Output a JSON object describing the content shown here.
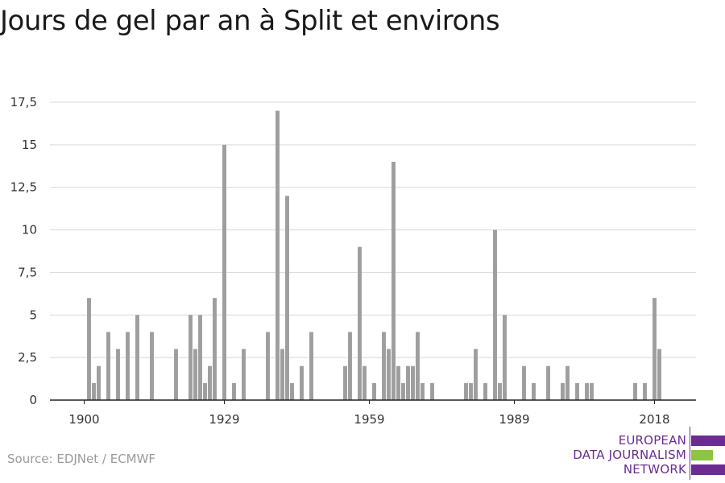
{
  "title": "Jours de gel par an à Split et environs",
  "source": "Source: EDJNet / ECMWF",
  "logo": {
    "lines": [
      "EUROPEAN",
      "DATA JOURNALISM",
      "NETWORK"
    ],
    "colors": {
      "purple": "#6a2c91",
      "green": "#8cc63f"
    }
  },
  "colors": {
    "bar": "#9e9e9e",
    "grid": "#d9d9d9",
    "axis": "#222222"
  },
  "chart_data": {
    "type": "bar",
    "title": "Jours de gel par an à Split et environs",
    "xlabel": "",
    "ylabel": "",
    "xlim": [
      1900,
      2019
    ],
    "ylim": [
      0,
      17.5
    ],
    "yticks": [
      0,
      2.5,
      5,
      7.5,
      10,
      12.5,
      15,
      17.5
    ],
    "ytick_labels": [
      "0",
      "2,5",
      "5",
      "7,5",
      "10",
      "12,5",
      "15",
      "17,5"
    ],
    "xticks": [
      1900,
      1929,
      1959,
      1989,
      2018
    ],
    "xtick_labels": [
      "1900",
      "1929",
      "1959",
      "1989",
      "2018"
    ],
    "grid": true,
    "x": [
      1900,
      1901,
      1902,
      1903,
      1904,
      1905,
      1906,
      1907,
      1908,
      1909,
      1910,
      1911,
      1912,
      1913,
      1914,
      1915,
      1916,
      1917,
      1918,
      1919,
      1920,
      1921,
      1922,
      1923,
      1924,
      1925,
      1926,
      1927,
      1928,
      1929,
      1930,
      1931,
      1932,
      1933,
      1934,
      1935,
      1936,
      1937,
      1938,
      1939,
      1940,
      1941,
      1942,
      1943,
      1944,
      1945,
      1946,
      1947,
      1948,
      1949,
      1950,
      1951,
      1952,
      1953,
      1954,
      1955,
      1956,
      1957,
      1958,
      1959,
      1960,
      1961,
      1962,
      1963,
      1964,
      1965,
      1966,
      1967,
      1968,
      1969,
      1970,
      1971,
      1972,
      1973,
      1974,
      1975,
      1976,
      1977,
      1978,
      1979,
      1980,
      1981,
      1982,
      1983,
      1984,
      1985,
      1986,
      1987,
      1988,
      1989,
      1990,
      1991,
      1992,
      1993,
      1994,
      1995,
      1996,
      1997,
      1998,
      1999,
      2000,
      2001,
      2002,
      2003,
      2004,
      2005,
      2006,
      2007,
      2008,
      2009,
      2010,
      2011,
      2012,
      2013,
      2014,
      2015,
      2016,
      2017,
      2018,
      2019
    ],
    "values": [
      0,
      6,
      1,
      2,
      0,
      4,
      0,
      3,
      0,
      4,
      0,
      5,
      0,
      0,
      4,
      0,
      0,
      0,
      0,
      3,
      0,
      0,
      5,
      3,
      5,
      1,
      2,
      6,
      0,
      15,
      0,
      1,
      0,
      3,
      0,
      0,
      0,
      0,
      4,
      0,
      17,
      3,
      12,
      1,
      0,
      2,
      0,
      4,
      0,
      0,
      0,
      0,
      0,
      0,
      2,
      4,
      0,
      9,
      2,
      0,
      1,
      0,
      4,
      3,
      14,
      2,
      1,
      2,
      2,
      4,
      1,
      0,
      1,
      0,
      0,
      0,
      0,
      0,
      0,
      1,
      1,
      3,
      0,
      1,
      0,
      10,
      1,
      5,
      0,
      0,
      0,
      2,
      0,
      1,
      0,
      0,
      2,
      0,
      0,
      1,
      2,
      0,
      1,
      0,
      1,
      1,
      0,
      0,
      0,
      0,
      0,
      0,
      0,
      0,
      1,
      0,
      1,
      0,
      6,
      3
    ]
  }
}
